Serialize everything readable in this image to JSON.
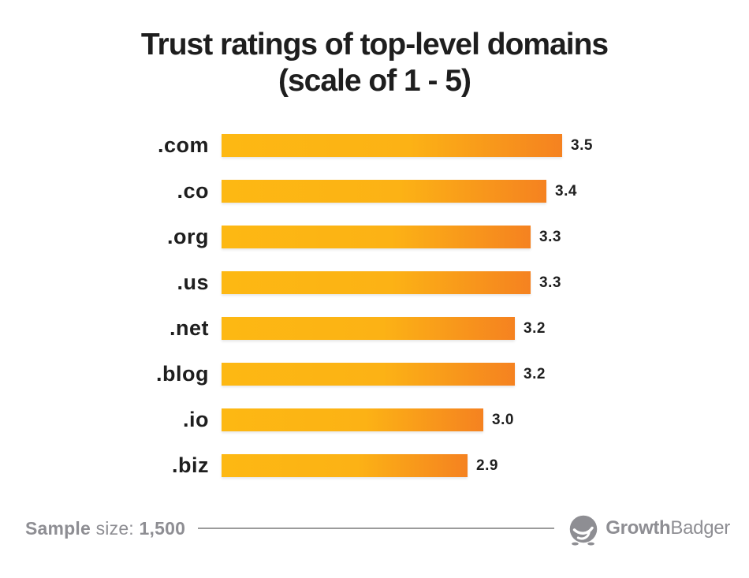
{
  "title": {
    "line1": "Trust ratings of top-level domains",
    "line2": "(scale of 1 - 5)"
  },
  "chart_data": {
    "type": "bar",
    "orientation": "horizontal",
    "title": "Trust ratings of top-level domains",
    "subtitle": "(scale of 1 - 5)",
    "categories": [
      ".com",
      ".co",
      ".org",
      ".us",
      ".net",
      ".blog",
      ".io",
      ".biz"
    ],
    "values": [
      3.5,
      3.4,
      3.3,
      3.3,
      3.2,
      3.2,
      3.0,
      2.9
    ],
    "value_labels": [
      "3.5",
      "3.4",
      "3.3",
      "3.3",
      "3.2",
      "3.2",
      "3.0",
      "2.9"
    ],
    "value_scale_min": 1,
    "value_scale_max": 5,
    "bar_length_baseline": 1.34,
    "grid": false,
    "legend": "none",
    "data_labels": "end-of-bar"
  },
  "footer": {
    "sample_label_strong": "Sample",
    "sample_label_regular": "size:",
    "sample_value": "1,500",
    "brand_bold": "Growth",
    "brand_regular": "Badger"
  },
  "colors": {
    "background": "#ffffff",
    "text_dark": "#1e1e1e",
    "bar_gradient_start": "#FDB813",
    "bar_gradient_mid": "#FCB215",
    "bar_gradient_end": "#F58220",
    "footer_gray": "#8E8E93",
    "divider_line": "#9b9b9b"
  }
}
